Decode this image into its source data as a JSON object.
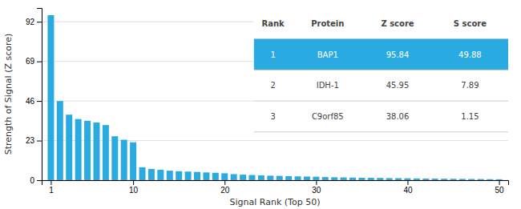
{
  "chart_data": {
    "type": "bar",
    "xlabel": "Signal Rank (Top 50)",
    "ylabel": "Strength of Signal (Z score)",
    "x": [
      1,
      2,
      3,
      4,
      5,
      6,
      7,
      8,
      9,
      10,
      11,
      12,
      13,
      14,
      15,
      16,
      17,
      18,
      19,
      20,
      21,
      22,
      23,
      24,
      25,
      26,
      27,
      28,
      29,
      30,
      31,
      32,
      33,
      34,
      35,
      36,
      37,
      38,
      39,
      40,
      41,
      42,
      43,
      44,
      45,
      46,
      47,
      48,
      49,
      50
    ],
    "values": [
      95.84,
      45.95,
      38.06,
      35.5,
      34.5,
      33.5,
      32.0,
      25.5,
      23.5,
      22.0,
      7.5,
      6.5,
      6.0,
      5.5,
      5.2,
      5.0,
      4.8,
      4.5,
      4.3,
      4.0,
      3.5,
      3.2,
      3.0,
      2.8,
      2.6,
      2.5,
      2.3,
      2.2,
      2.1,
      2.0,
      1.8,
      1.7,
      1.6,
      1.5,
      1.4,
      1.35,
      1.3,
      1.2,
      1.15,
      1.1,
      1.0,
      0.95,
      0.9,
      0.85,
      0.8,
      0.75,
      0.7,
      0.65,
      0.6,
      0.55
    ],
    "color": "#29ABE2",
    "xlim": [
      0,
      51
    ],
    "xticks": [
      1,
      10,
      20,
      30,
      40,
      50
    ],
    "ylim": [
      0,
      100
    ],
    "yticks": [
      0,
      23,
      46,
      69,
      92
    ],
    "grid": true,
    "table": {
      "header": [
        "Rank",
        "Protein",
        "Z score",
        "S score"
      ],
      "rows": [
        [
          "1",
          "BAP1",
          "95.84",
          "49.88"
        ],
        [
          "2",
          "IDH-1",
          "45.95",
          "7.89"
        ],
        [
          "3",
          "C9orf85",
          "38.06",
          "1.15"
        ]
      ],
      "highlight_row": 0
    }
  }
}
